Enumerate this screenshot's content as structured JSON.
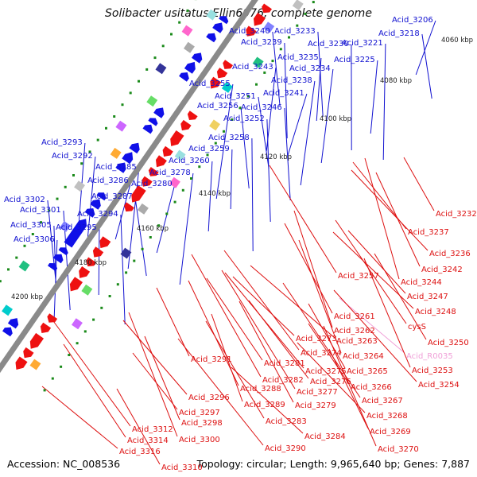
{
  "title": "Solibacter usitatus Ellin6076, complete genome",
  "accession": "Accession: NC_008536",
  "summary": "Topology: circular; Length: 9,965,640 bp; Genes: 7,887",
  "colors": {
    "forward_label": "#1010d0",
    "reverse_label": "#dd1010",
    "rna_label": "#f0a0d8",
    "forward_gene": "#1010e8",
    "reverse_gene": "#ee1111",
    "backbone": "#8a8a8a",
    "tick_dot": "#1a8a1a"
  },
  "scale_ticks": [
    "4060 kbp",
    "4080 kbp",
    "4100 kbp",
    "4120 kbp",
    "4140 kbp",
    "4160 kbp",
    "4180 kbp",
    "4200 kbp"
  ],
  "forward_labels": [
    "Acid_3206",
    "Acid_3218",
    "Acid_3240",
    "Acid_3233",
    "Acid_3239",
    "Acid_3230",
    "Acid_3221",
    "Acid_3235",
    "Acid_3225",
    "Acid_3243",
    "Acid_3234",
    "Acid_3238",
    "Acid_3255",
    "Acid_3241",
    "Acid_3251",
    "Acid_3256",
    "Acid_3246",
    "Acid_3252",
    "Acid_3258",
    "Acid_3259",
    "Acid_3260",
    "Acid_3293",
    "Acid_3292",
    "Acid_3285",
    "Acid_3278",
    "Acid_3286",
    "Acid_3280",
    "Acid_3287",
    "Acid_3302",
    "Acid_3301",
    "Acid_3294",
    "Acid_3305",
    "Acid_3295",
    "Acid_3306"
  ],
  "reverse_labels": [
    "Acid_3232",
    "Acid_3237",
    "Acid_3236",
    "Acid_3242",
    "Acid_3257",
    "Acid_3244",
    "Acid_3247",
    "Acid_3248",
    "Acid_3261",
    "cysS",
    "Acid_3262",
    "Acid_3273",
    "Acid_3263",
    "Acid_3250",
    "Acid_3274",
    "Acid_3264",
    "Acid_R0035",
    "Acid_3291",
    "Acid_3281",
    "Acid_3275",
    "Acid_3253",
    "Acid_3282",
    "Acid_3265",
    "Acid_3276",
    "Acid_3254",
    "Acid_3288",
    "Acid_3277",
    "Acid_3266",
    "Acid_3296",
    "Acid_3289",
    "Acid_3279",
    "Acid_3267",
    "Acid_3297",
    "Acid_3268",
    "Acid_3298",
    "Acid_3283",
    "Acid_3312",
    "Acid_3300",
    "Acid_3284",
    "Acid_3269",
    "Acid_3314",
    "Acid_3290",
    "Acid_3270",
    "Acid_3316",
    "Acid_3310"
  ]
}
